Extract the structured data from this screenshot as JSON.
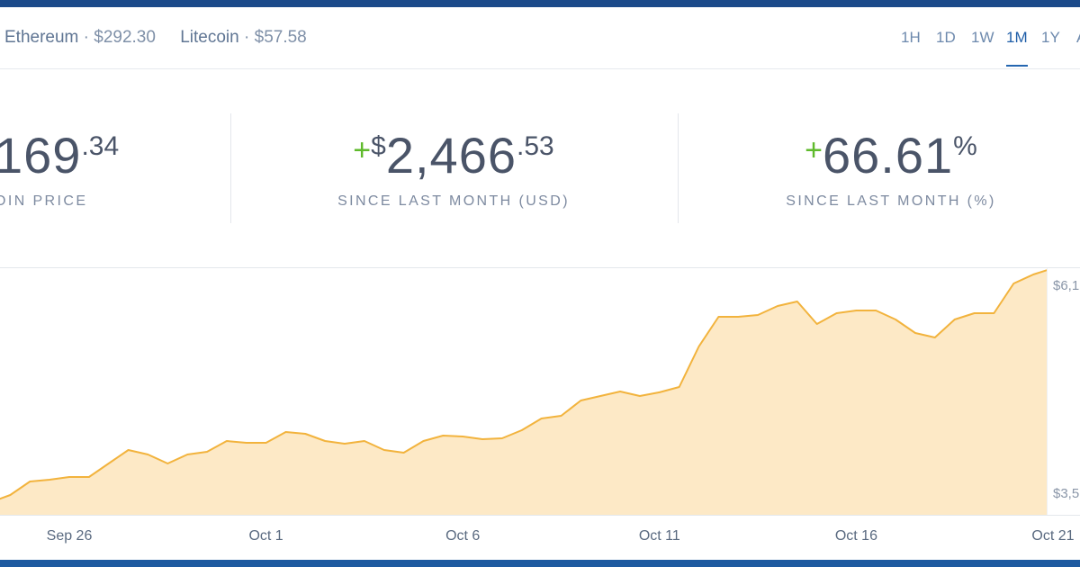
{
  "header": {
    "tickers": [
      {
        "name": "Ethereum",
        "price": "· $292.30"
      },
      {
        "name": "Litecoin",
        "price": "· $57.58"
      }
    ],
    "ranges": [
      "1H",
      "1D",
      "1W",
      "1M",
      "1Y",
      "A"
    ],
    "active_range_index": 3
  },
  "stats": [
    {
      "main": "169",
      "cents": ".34",
      "label": "OIN PRICE"
    },
    {
      "sign": "+",
      "currency": "$",
      "main": "2,466",
      "cents": ".53",
      "label": "SINCE LAST MONTH (USD)"
    },
    {
      "sign": "+",
      "main": "66.61",
      "unit": "%",
      "label": "SINCE LAST MONTH (%)"
    }
  ],
  "chart_data": {
    "type": "area",
    "categories": [
      null,
      null,
      null,
      null,
      "Sep 26",
      null,
      null,
      null,
      null,
      null,
      null,
      null,
      null,
      null,
      "Oct 1",
      null,
      null,
      null,
      null,
      null,
      null,
      null,
      null,
      null,
      "Oct 6",
      null,
      null,
      null,
      null,
      null,
      null,
      null,
      null,
      null,
      "Oct 11",
      null,
      null,
      null,
      null,
      null,
      null,
      null,
      null,
      null,
      "Oct 16",
      null,
      null,
      null,
      null,
      null,
      null,
      null,
      null,
      null,
      "Oct 21"
    ],
    "series": [
      {
        "color": "#f2b33d",
        "fill": "#fde9c6",
        "values": [
          3674,
          3751,
          3895,
          3914,
          3943,
          3943,
          4087,
          4231,
          4183,
          4087,
          4183,
          4212,
          4327,
          4308,
          4308,
          4423,
          4404,
          4327,
          4298,
          4327,
          4231,
          4202,
          4327,
          4385,
          4375,
          4346,
          4356,
          4442,
          4567,
          4596,
          4759,
          4807,
          4855,
          4807,
          4846,
          4903,
          5335,
          5652,
          5652,
          5671,
          5767,
          5815,
          5575,
          5690,
          5719,
          5719,
          5623,
          5479,
          5431,
          5623,
          5690,
          5690,
          6007,
          6103,
          6170
        ]
      }
    ],
    "ylim": [
      3540,
      6170
    ],
    "yticks": [
      {
        "value": 6170,
        "label": "$6,1"
      },
      {
        "value": 3540,
        "label": "$3,5"
      }
    ]
  }
}
